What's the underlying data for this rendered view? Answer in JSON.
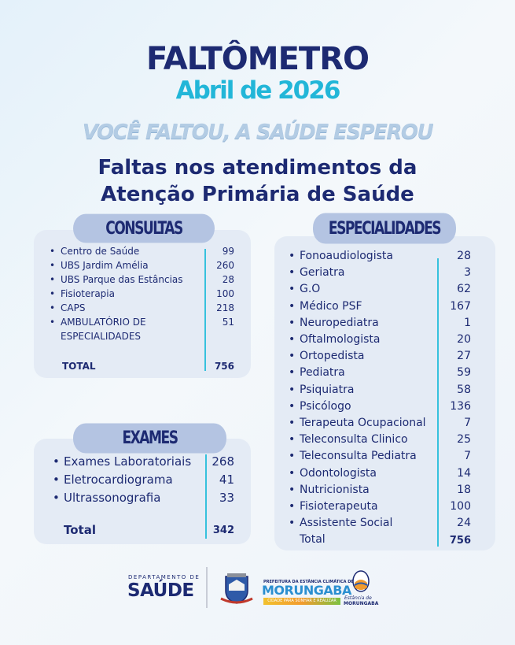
{
  "header": {
    "title": "FALTÔMETRO",
    "month": "Abril de 2026",
    "slogan": "VOCÊ FALTOU, A SAÚDE ESPEROU",
    "subtitle_line1": "Faltas nos atendimentos da",
    "subtitle_line2": "Atenção Primária de Saúde"
  },
  "consultas": {
    "title": "CONSULTAS",
    "items": [
      {
        "label": "Centro de Saúde",
        "value": "99"
      },
      {
        "label": "UBS Jardim Amélia",
        "value": "260"
      },
      {
        "label": "UBS Parque das Estâncias",
        "value": "28"
      },
      {
        "label": "Fisioterapia",
        "value": "100"
      },
      {
        "label": "CAPS",
        "value": "218"
      },
      {
        "label": "AMBULATÓRIO DE",
        "label2": "ESPECIALIDADES",
        "value": "51"
      }
    ],
    "total_label": "TOTAL",
    "total_value": "756"
  },
  "exames": {
    "title": "EXAMES",
    "items": [
      {
        "label": "Exames Laboratoriais",
        "value": "268"
      },
      {
        "label": "Eletrocardiograma",
        "value": "41"
      },
      {
        "label": "Ultrassonografia",
        "value": "33"
      }
    ],
    "total_label": "Total",
    "total_value": "342"
  },
  "especialidades": {
    "title": "ESPECIALIDADES",
    "items": [
      {
        "label": "Fonoaudiologista",
        "value": "28"
      },
      {
        "label": "Geriatra",
        "value": "3"
      },
      {
        "label": "G.O",
        "value": "62"
      },
      {
        "label": "Médico PSF",
        "value": "167"
      },
      {
        "label": "Neuropediatra",
        "value": "1"
      },
      {
        "label": "Oftalmologista",
        "value": "20"
      },
      {
        "label": "Ortopedista",
        "value": "27"
      },
      {
        "label": "Pediatra",
        "value": "59"
      },
      {
        "label": "Psiquiatra",
        "value": "58"
      },
      {
        "label": "Psicólogo",
        "value": "136"
      },
      {
        "label": "Terapeuta Ocupacional",
        "value": "7"
      },
      {
        "label": "Teleconsulta Clinico",
        "value": "25"
      },
      {
        "label": "Teleconsulta Pediatra",
        "value": "7"
      },
      {
        "label": "Odontologista",
        "value": "14"
      },
      {
        "label": "Nutricionista",
        "value": "18"
      },
      {
        "label": "Fisioterapeuta",
        "value": "100"
      },
      {
        "label": "Assistente Social",
        "value": "24"
      }
    ],
    "total_label": "Total",
    "total_value": "756"
  },
  "footer": {
    "dept_small": "DEPARTAMENTO DE",
    "dept_big": "SAÚDE",
    "pref_small": "PREFEITURA DA ESTÂNCIA CLIMÁTICA DE",
    "pref_city": "MORUNGABA",
    "pref_slogan": "CIDADE PARA SONHAR E REALIZAR",
    "estancia_top": "Estância de",
    "estancia_city": "MORUNGABA"
  }
}
